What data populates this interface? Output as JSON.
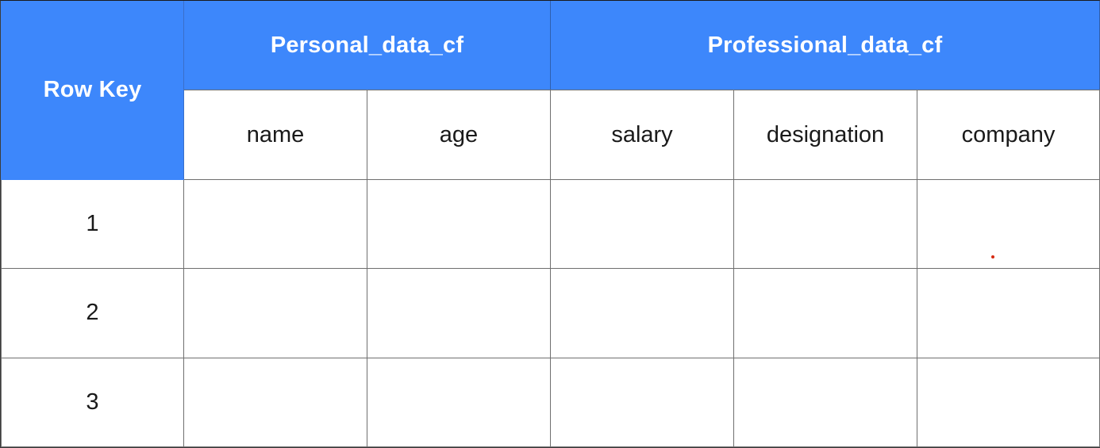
{
  "table": {
    "row_key_header": "Row Key",
    "column_families": [
      {
        "name": "Personal_data_cf",
        "columns": [
          "name",
          "age"
        ]
      },
      {
        "name": "Professional_data_cf",
        "columns": [
          "salary",
          "designation",
          "company"
        ]
      }
    ],
    "rows": [
      {
        "key": "1"
      },
      {
        "key": "2"
      },
      {
        "key": "3"
      }
    ]
  },
  "colors": {
    "header_blue": "#3d87fb",
    "header_text": "#ffffff",
    "grid_line": "#6f6f6f",
    "cursor_dot": "#d62a12"
  }
}
